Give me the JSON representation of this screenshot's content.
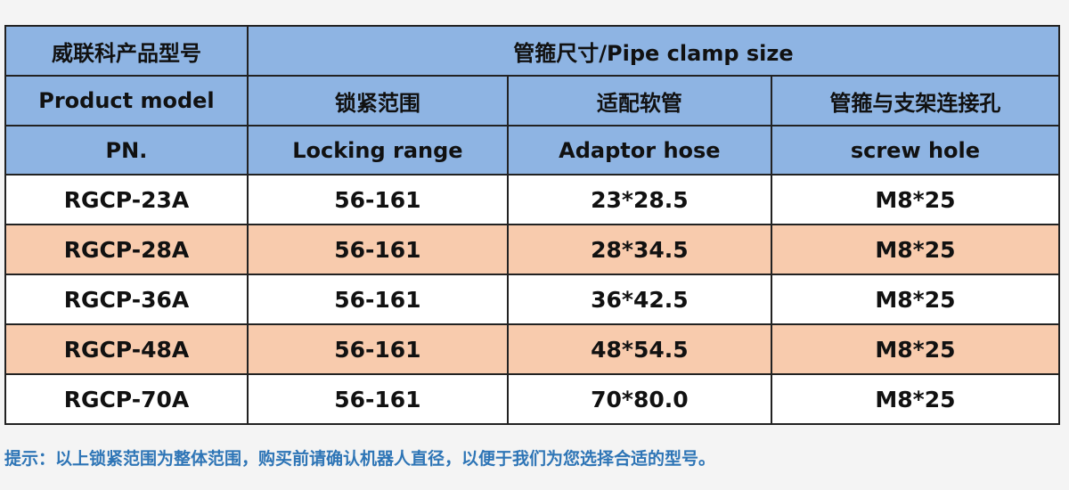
{
  "table": {
    "header_row1": {
      "model_cn": "威联科产品型号",
      "size_group": "管箍尺寸/Pipe clamp size"
    },
    "header_row2": {
      "model_en": "Product model",
      "locking_cn": "锁紧范围",
      "hose_cn": "适配软管",
      "hole_cn": "管箍与支架连接孔"
    },
    "header_row3": {
      "pn": "PN.",
      "locking_en": "Locking range",
      "hose_en": "Adaptor hose",
      "hole_en": "screw hole"
    },
    "rows": [
      {
        "pn": "RGCP-23A",
        "range": "56-161",
        "hose": "23*28.5",
        "hole": "M8*25"
      },
      {
        "pn": "RGCP-28A",
        "range": "56-161",
        "hose": "28*34.5",
        "hole": "M8*25"
      },
      {
        "pn": "RGCP-36A",
        "range": "56-161",
        "hose": "36*42.5",
        "hole": "M8*25"
      },
      {
        "pn": "RGCP-48A",
        "range": "56-161",
        "hose": "48*54.5",
        "hole": "M8*25"
      },
      {
        "pn": "RGCP-70A",
        "range": "56-161",
        "hose": "70*80.0",
        "hole": "M8*25"
      }
    ]
  },
  "colors": {
    "header_bg": "#8eb4e3",
    "alt_row_bg": "#f8cbad",
    "note_text": "#2e75b6"
  },
  "note": "提示：以上锁紧范围为整体范围，购买前请确认机器人直径，以便于我们为您选择合适的型号。"
}
